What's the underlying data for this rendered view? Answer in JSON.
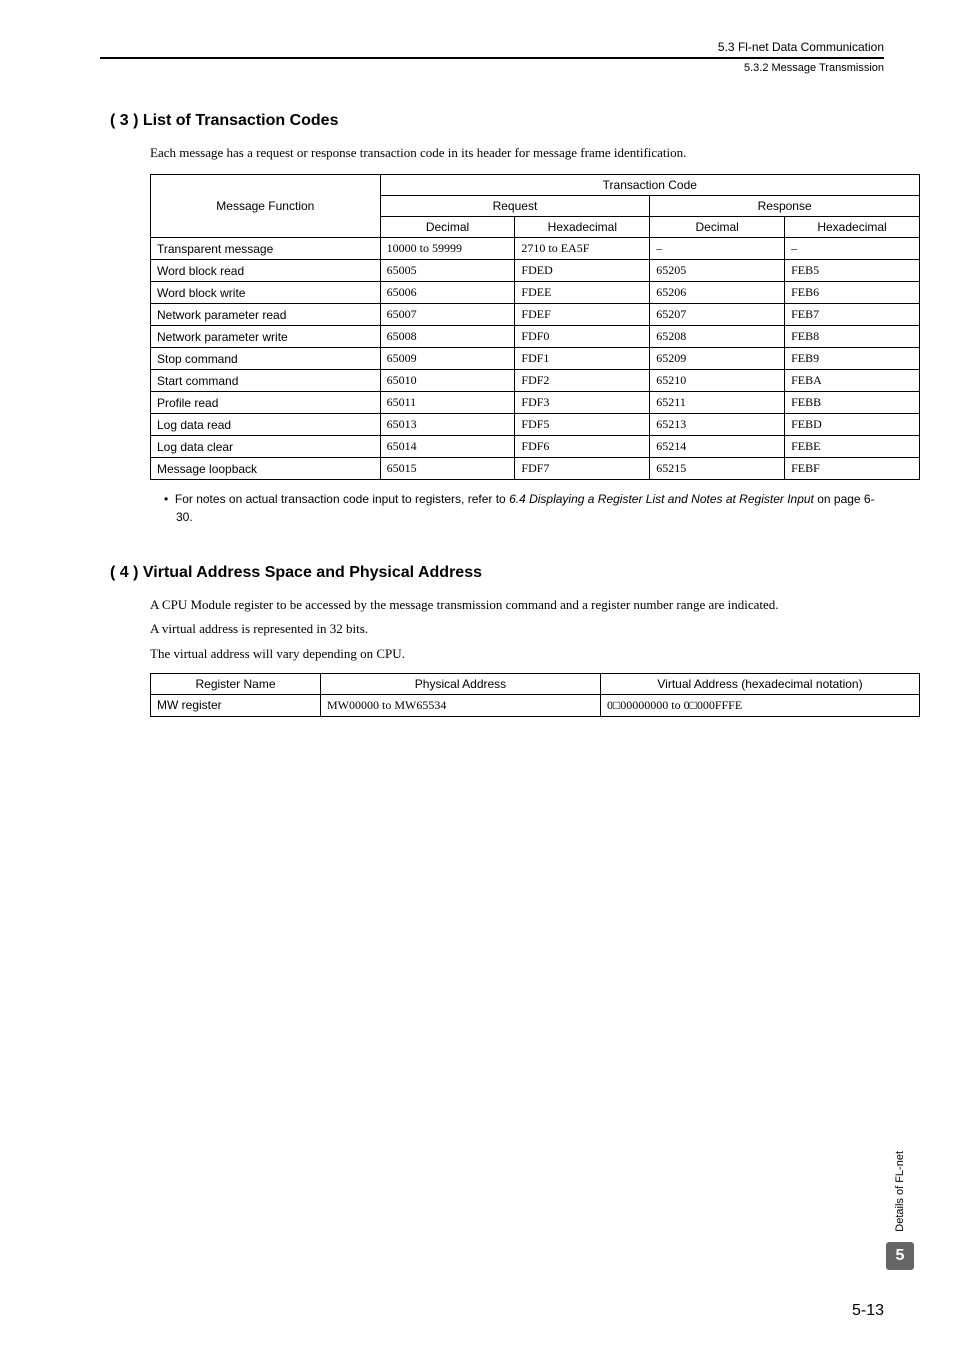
{
  "header": {
    "line1": "5.3  Fl-net Data Communication",
    "line2": "5.3.2  Message Transmission"
  },
  "section3": {
    "heading": "( 3 )   List of Transaction Codes",
    "intro": "Each message has a request or response transaction code in its header for message frame identification.",
    "table": {
      "cols": {
        "msgfunc": "Message Function",
        "transcode": "Transaction Code",
        "request": "Request",
        "response": "Response",
        "decimal": "Decimal",
        "hex": "Hexadecimal"
      },
      "rows": [
        {
          "func": "Transparent message",
          "req_dec": "10000 to 59999",
          "req_hex": "2710 to EA5F",
          "res_dec": "–",
          "res_hex": "–"
        },
        {
          "func": "Word block read",
          "req_dec": "65005",
          "req_hex": "FDED",
          "res_dec": "65205",
          "res_hex": "FEB5"
        },
        {
          "func": "Word block write",
          "req_dec": "65006",
          "req_hex": "FDEE",
          "res_dec": "65206",
          "res_hex": "FEB6"
        },
        {
          "func": "Network parameter read",
          "req_dec": "65007",
          "req_hex": "FDEF",
          "res_dec": "65207",
          "res_hex": "FEB7"
        },
        {
          "func": "Network parameter write",
          "req_dec": "65008",
          "req_hex": "FDF0",
          "res_dec": "65208",
          "res_hex": "FEB8"
        },
        {
          "func": "Stop command",
          "req_dec": "65009",
          "req_hex": "FDF1",
          "res_dec": "65209",
          "res_hex": "FEB9"
        },
        {
          "func": "Start command",
          "req_dec": "65010",
          "req_hex": "FDF2",
          "res_dec": "65210",
          "res_hex": "FEBA"
        },
        {
          "func": "Profile read",
          "req_dec": "65011",
          "req_hex": "FDF3",
          "res_dec": "65211",
          "res_hex": "FEBB"
        },
        {
          "func": "Log data read",
          "req_dec": "65013",
          "req_hex": "FDF5",
          "res_dec": "65213",
          "res_hex": "FEBD"
        },
        {
          "func": "Log data clear",
          "req_dec": "65014",
          "req_hex": "FDF6",
          "res_dec": "65214",
          "res_hex": "FEBE"
        },
        {
          "func": "Message loopback",
          "req_dec": "65015",
          "req_hex": "FDF7",
          "res_dec": "65215",
          "res_hex": "FEBF"
        }
      ]
    },
    "note_bullet": "•",
    "note_pre": "For notes on actual transaction code input to registers, refer to ",
    "note_italic": "6.4 Displaying a Register List and Notes at Register Input",
    "note_post": " on page 6-30."
  },
  "section4": {
    "heading": "( 4 )   Virtual Address Space and Physical Address",
    "p1": "A CPU Module register to be accessed by the message transmission command and a register number range are indicated.",
    "p2": "A virtual address is represented in 32 bits.",
    "p3": "The virtual address will vary depending on CPU.",
    "table": {
      "cols": {
        "regname": "Register Name",
        "phys": "Physical Address",
        "virt": "Virtual Address (hexadecimal notation)"
      },
      "rows": [
        {
          "name": "MW register",
          "phys": "MW00000 to MW65534",
          "virt": "0□00000000 to 0□000FFFE"
        }
      ]
    }
  },
  "sidebar": {
    "label": "Details of FL-net",
    "chapter": "5"
  },
  "page": "5-13"
}
